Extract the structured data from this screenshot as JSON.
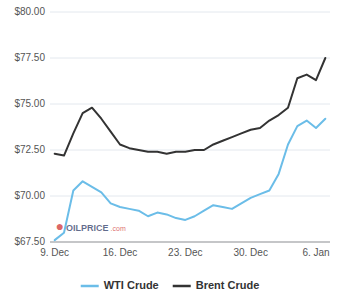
{
  "chart_data": {
    "type": "line",
    "categories": [
      "9. Dec",
      null,
      null,
      null,
      null,
      null,
      null,
      "16. Dec",
      null,
      null,
      null,
      null,
      null,
      null,
      "23. Dec",
      null,
      null,
      null,
      null,
      null,
      null,
      "30. Dec",
      null,
      null,
      null,
      null,
      null,
      null,
      "6. Jan",
      null
    ],
    "series": [
      {
        "name": "WTI Crude",
        "color": "#6bbde8",
        "values": [
          67.6,
          68.0,
          70.3,
          70.8,
          70.5,
          70.2,
          69.6,
          69.4,
          69.3,
          69.2,
          68.9,
          69.1,
          69.0,
          68.8,
          68.7,
          68.9,
          69.2,
          69.5,
          69.4,
          69.3,
          69.6,
          69.9,
          70.1,
          70.3,
          71.2,
          72.8,
          73.8,
          74.1,
          73.7,
          74.2
        ]
      },
      {
        "name": "Brent Crude",
        "color": "#333333",
        "values": [
          72.3,
          72.2,
          73.4,
          74.5,
          74.8,
          74.2,
          73.5,
          72.8,
          72.6,
          72.5,
          72.4,
          72.4,
          72.3,
          72.4,
          72.4,
          72.5,
          72.5,
          72.8,
          73.0,
          73.2,
          73.4,
          73.6,
          73.7,
          74.1,
          74.4,
          74.8,
          76.4,
          76.6,
          76.3,
          77.5
        ]
      }
    ],
    "ylim": [
      67.5,
      80.0
    ],
    "yticks": [
      {
        "value": 67.5,
        "label": "$67.50"
      },
      {
        "value": 70.0,
        "label": "$70.00"
      },
      {
        "value": 72.5,
        "label": "$72.50"
      },
      {
        "value": 75.0,
        "label": "$75.00"
      },
      {
        "value": 77.5,
        "label": "$77.50"
      },
      {
        "value": 80.0,
        "label": "$80.00"
      }
    ],
    "grid": true,
    "legend": "bottom",
    "annotations": [
      {
        "text": "●",
        "color": "#cc2222"
      },
      {
        "text": "OILPRICE",
        "color": "#1a2a5a"
      },
      {
        "text": ".com",
        "color": "#cc2222"
      }
    ]
  }
}
